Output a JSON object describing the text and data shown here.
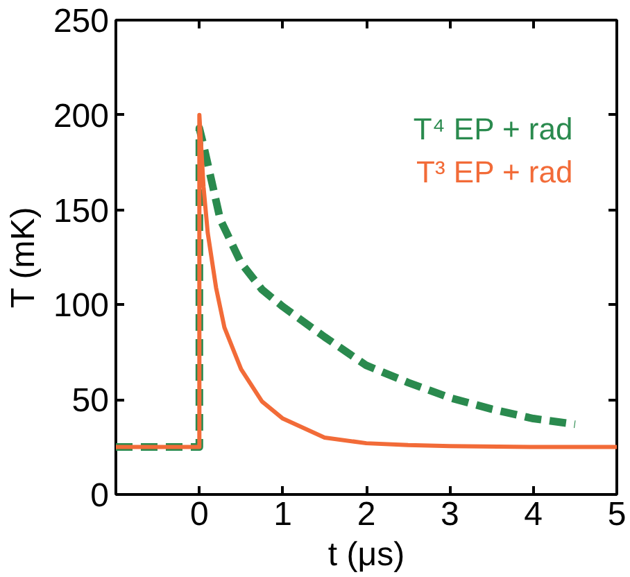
{
  "chart_data": {
    "type": "line",
    "xlabel": "t (μs)",
    "ylabel": "T (mK)",
    "xlim": [
      -1,
      5
    ],
    "ylim": [
      0,
      250
    ],
    "xticks": [
      0,
      1,
      2,
      3,
      4,
      5
    ],
    "yticks": [
      0,
      50,
      100,
      150,
      200,
      250
    ],
    "grid": false,
    "legend": "top right",
    "series": [
      {
        "name": "T⁴  EP + rad",
        "color": "#2a8a4e",
        "line_style": "dashed",
        "x": [
          -1,
          0,
          0,
          0.05,
          0.25,
          0.5,
          0.75,
          1,
          1.5,
          2,
          2.5,
          3,
          3.5,
          4,
          4.5
        ],
        "values": [
          25,
          25,
          193,
          184,
          145,
          122,
          108,
          99,
          83,
          68,
          59,
          51,
          45,
          40,
          37
        ]
      },
      {
        "name": "T³  EP + rad",
        "color": "#f26b38",
        "line_style": "solid",
        "x": [
          -1,
          0,
          0,
          0.05,
          0.1,
          0.2,
          0.3,
          0.5,
          0.75,
          1,
          1.5,
          2,
          2.5,
          3,
          4,
          5
        ],
        "values": [
          25,
          25,
          200,
          162,
          138,
          109,
          88,
          66,
          49,
          40,
          30,
          27,
          26,
          25.5,
          25,
          25
        ]
      }
    ]
  }
}
